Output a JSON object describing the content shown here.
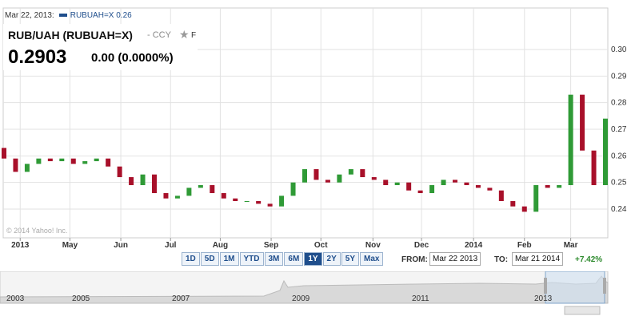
{
  "chart_data": {
    "type": "candlestick",
    "x": [
      "Mar 22 2013",
      null,
      null,
      null,
      null,
      null,
      null,
      null,
      null,
      null,
      null,
      null,
      null,
      null,
      null,
      null,
      null,
      null,
      null,
      null,
      null,
      null,
      null,
      null,
      null,
      null,
      null,
      null,
      null,
      null,
      null,
      null,
      null,
      null,
      null,
      null,
      null,
      null,
      null,
      null,
      null,
      null,
      null,
      null,
      null,
      null,
      null,
      null,
      null,
      null,
      null,
      null,
      "Mar 21 2014"
    ],
    "open": [
      0.263,
      0.259,
      0.254,
      0.257,
      0.259,
      0.258,
      0.259,
      0.257,
      0.258,
      0.259,
      0.256,
      0.252,
      0.249,
      0.253,
      0.246,
      0.244,
      0.245,
      0.248,
      0.249,
      0.246,
      0.244,
      0.243,
      0.243,
      0.242,
      0.241,
      0.245,
      0.25,
      0.255,
      0.251,
      0.25,
      0.253,
      0.255,
      0.252,
      0.251,
      0.249,
      0.25,
      0.247,
      0.246,
      0.249,
      0.251,
      0.25,
      0.249,
      0.248,
      0.247,
      0.243,
      0.241,
      0.239,
      0.249,
      0.248,
      0.249,
      0.283,
      0.262,
      0.249
    ],
    "close": [
      0.259,
      0.254,
      0.257,
      0.259,
      0.258,
      0.259,
      0.257,
      0.258,
      0.259,
      0.256,
      0.252,
      0.249,
      0.253,
      0.246,
      0.244,
      0.245,
      0.248,
      0.249,
      0.246,
      0.244,
      0.243,
      0.243,
      0.242,
      0.241,
      0.245,
      0.25,
      0.255,
      0.251,
      0.25,
      0.253,
      0.255,
      0.252,
      0.251,
      0.249,
      0.25,
      0.247,
      0.246,
      0.249,
      0.251,
      0.25,
      0.249,
      0.248,
      0.247,
      0.243,
      0.241,
      0.239,
      0.249,
      0.248,
      0.249,
      0.283,
      0.262,
      0.249,
      0.274
    ],
    "up_color": "#2f9a36",
    "down_color": "#a8102a",
    "xlim": [
      0,
      52
    ],
    "xticks": [
      {
        "value": 1.4,
        "label": "2013"
      },
      {
        "value": 5.7,
        "label": "May"
      },
      {
        "value": 10.1,
        "label": "Jun"
      },
      {
        "value": 14.4,
        "label": "Jul"
      },
      {
        "value": 18.7,
        "label": "Aug"
      },
      {
        "value": 23.1,
        "label": "Sep"
      },
      {
        "value": 27.4,
        "label": "Oct"
      },
      {
        "value": 31.9,
        "label": "Nov"
      },
      {
        "value": 36.1,
        "label": "Dec"
      },
      {
        "value": 40.6,
        "label": "2014"
      },
      {
        "value": 45.0,
        "label": "Feb"
      },
      {
        "value": 49.0,
        "label": "Mar"
      }
    ],
    "ylim": [
      0.2295,
      0.315
    ],
    "yticks": [
      0.24,
      0.25,
      0.26,
      0.27,
      0.28,
      0.29,
      {
        "value": 0.3,
        "label": "0.30"
      }
    ],
    "grid": true
  },
  "ui": {
    "hover_date": "Mar 22, 2013:",
    "legend": "RUBUAH=X 0.26",
    "name": "RUB/UAH (RUBUAH=X)",
    "ccy": "- CCY",
    "follow": "F",
    "price": "0.2903",
    "change": "0.00 (0.0000%)",
    "copyright": "© 2014 Yahoo! Inc.",
    "ranges": [
      "1D",
      "5D",
      "1M",
      "YTD",
      "3M",
      "6M",
      "1Y",
      "2Y",
      "5Y",
      "Max"
    ],
    "active_range": "1Y",
    "from_label": "FROM:",
    "from": "Mar 22 2013",
    "to_label": "TO:",
    "to": "Mar 21 2014",
    "period_change": "+7.42%",
    "nav_years": [
      "2003",
      "2005",
      "2007",
      "2009",
      "2011",
      "2013"
    ]
  }
}
